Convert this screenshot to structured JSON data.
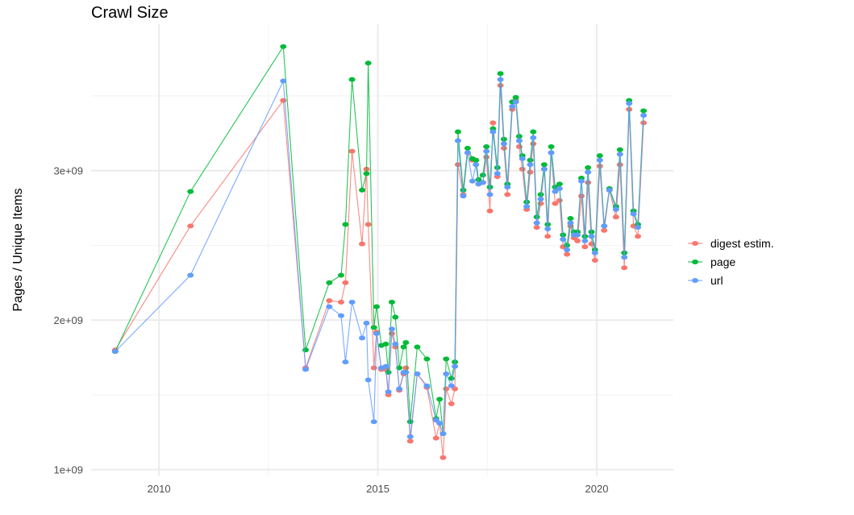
{
  "chart_data": {
    "type": "line",
    "title": "Crawl Size",
    "xlabel": "",
    "ylabel": "Pages / Unique Items",
    "xlim": [
      2008.45,
      2021.75
    ],
    "ylim": [
      960000000.0,
      3980000000.0
    ],
    "x_ticks": [
      {
        "value": 2010,
        "label": "2010"
      },
      {
        "value": 2015,
        "label": "2015"
      },
      {
        "value": 2020,
        "label": "2020"
      }
    ],
    "y_ticks": [
      {
        "value": 1000000000.0,
        "label": "1e+09"
      },
      {
        "value": 2000000000.0,
        "label": "2e+09"
      },
      {
        "value": 3000000000.0,
        "label": "3e+09"
      }
    ],
    "grid": true,
    "legend_position": "right",
    "x": [
      2009.0,
      2010.72,
      2012.84,
      2013.35,
      2013.89,
      2014.16,
      2014.26,
      2014.41,
      2014.64,
      2014.74,
      2014.78,
      2014.91,
      2014.97,
      2015.08,
      2015.18,
      2015.24,
      2015.32,
      2015.4,
      2015.49,
      2015.59,
      2015.64,
      2015.74,
      2015.9,
      2016.12,
      2016.33,
      2016.41,
      2016.49,
      2016.56,
      2016.68,
      2016.76,
      2016.83,
      2016.95,
      2017.05,
      2017.16,
      2017.24,
      2017.3,
      2017.4,
      2017.48,
      2017.56,
      2017.63,
      2017.73,
      2017.8,
      2017.88,
      2017.96,
      2018.07,
      2018.15,
      2018.23,
      2018.3,
      2018.4,
      2018.48,
      2018.55,
      2018.63,
      2018.72,
      2018.8,
      2018.88,
      2018.96,
      2019.05,
      2019.15,
      2019.23,
      2019.32,
      2019.4,
      2019.48,
      2019.56,
      2019.65,
      2019.73,
      2019.8,
      2019.88,
      2019.96,
      2020.07,
      2020.17,
      2020.29,
      2020.44,
      2020.53,
      2020.63,
      2020.74,
      2020.84,
      2020.94,
      2021.07
    ],
    "series": [
      {
        "name": "digest estim.",
        "color": "#F8766D",
        "values": [
          1800000000.0,
          2630000000.0,
          3470000000.0,
          1680000000.0,
          2130000000.0,
          2120000000.0,
          2250000000.0,
          3130000000.0,
          2510000000.0,
          3010000000.0,
          2640000000.0,
          1680000000.0,
          1920000000.0,
          1670000000.0,
          1670000000.0,
          1500000000.0,
          1910000000.0,
          1820000000.0,
          1530000000.0,
          1640000000.0,
          1680000000.0,
          1190000000.0,
          1640000000.0,
          1550000000.0,
          1210000000.0,
          1310000000.0,
          1080000000.0,
          1540000000.0,
          1440000000.0,
          1540000000.0,
          3040000000.0,
          2840000000.0,
          3120000000.0,
          3070000000.0,
          3070000000.0,
          2910000000.0,
          2920000000.0,
          3090000000.0,
          2730000000.0,
          3320000000.0,
          2960000000.0,
          3570000000.0,
          3150000000.0,
          2840000000.0,
          3410000000.0,
          3470000000.0,
          3160000000.0,
          3010000000.0,
          2740000000.0,
          2990000000.0,
          3180000000.0,
          2620000000.0,
          2780000000.0,
          3010000000.0,
          2560000000.0,
          3120000000.0,
          2780000000.0,
          2800000000.0,
          2490000000.0,
          2440000000.0,
          2630000000.0,
          2550000000.0,
          2530000000.0,
          2830000000.0,
          2490000000.0,
          2920000000.0,
          2510000000.0,
          2400000000.0,
          3030000000.0,
          2600000000.0,
          2870000000.0,
          2690000000.0,
          3040000000.0,
          2350000000.0,
          3410000000.0,
          2630000000.0,
          2560000000.0,
          3320000000.0
        ]
      },
      {
        "name": "page",
        "color": "#00BA38",
        "values": [
          1790000000.0,
          2860000000.0,
          3830000000.0,
          1800000000.0,
          2250000000.0,
          2300000000.0,
          2640000000.0,
          3610000000.0,
          2870000000.0,
          2980000000.0,
          3720000000.0,
          1950000000.0,
          2090000000.0,
          1830000000.0,
          1840000000.0,
          1650000000.0,
          2120000000.0,
          2020000000.0,
          1680000000.0,
          1820000000.0,
          1850000000.0,
          1320000000.0,
          1820000000.0,
          1740000000.0,
          1340000000.0,
          1470000000.0,
          1240000000.0,
          1740000000.0,
          1610000000.0,
          1720000000.0,
          3260000000.0,
          2870000000.0,
          3150000000.0,
          3080000000.0,
          3070000000.0,
          2940000000.0,
          2970000000.0,
          3160000000.0,
          2890000000.0,
          3280000000.0,
          3020000000.0,
          3650000000.0,
          3210000000.0,
          2910000000.0,
          3460000000.0,
          3490000000.0,
          3230000000.0,
          3100000000.0,
          2790000000.0,
          3070000000.0,
          3260000000.0,
          2690000000.0,
          2840000000.0,
          3040000000.0,
          2640000000.0,
          3160000000.0,
          2890000000.0,
          2910000000.0,
          2570000000.0,
          2500000000.0,
          2680000000.0,
          2590000000.0,
          2590000000.0,
          2950000000.0,
          2560000000.0,
          3020000000.0,
          2590000000.0,
          2470000000.0,
          3100000000.0,
          2630000000.0,
          2880000000.0,
          2760000000.0,
          3140000000.0,
          2450000000.0,
          3470000000.0,
          2730000000.0,
          2640000000.0,
          3400000000.0
        ]
      },
      {
        "name": "url",
        "color": "#619CFF",
        "values": [
          1790000000.0,
          2300000000.0,
          3600000000.0,
          1670000000.0,
          2090000000.0,
          2030000000.0,
          1720000000.0,
          2120000000.0,
          1880000000.0,
          1980000000.0,
          1600000000.0,
          1320000000.0,
          1910000000.0,
          1680000000.0,
          1690000000.0,
          1520000000.0,
          1940000000.0,
          1840000000.0,
          1540000000.0,
          1650000000.0,
          1650000000.0,
          1220000000.0,
          1640000000.0,
          1560000000.0,
          1330000000.0,
          1310000000.0,
          1240000000.0,
          1640000000.0,
          1560000000.0,
          1690000000.0,
          3200000000.0,
          2830000000.0,
          3120000000.0,
          2930000000.0,
          3040000000.0,
          2910000000.0,
          2920000000.0,
          3130000000.0,
          2840000000.0,
          3260000000.0,
          2980000000.0,
          3610000000.0,
          3180000000.0,
          2890000000.0,
          3430000000.0,
          3460000000.0,
          3200000000.0,
          3080000000.0,
          2760000000.0,
          3040000000.0,
          3220000000.0,
          2650000000.0,
          2810000000.0,
          3010000000.0,
          2610000000.0,
          3120000000.0,
          2860000000.0,
          2880000000.0,
          2540000000.0,
          2470000000.0,
          2650000000.0,
          2570000000.0,
          2570000000.0,
          2930000000.0,
          2530000000.0,
          2990000000.0,
          2560000000.0,
          2450000000.0,
          3070000000.0,
          2630000000.0,
          2870000000.0,
          2740000000.0,
          3110000000.0,
          2420000000.0,
          3450000000.0,
          2710000000.0,
          2620000000.0,
          3370000000.0
        ]
      }
    ]
  }
}
